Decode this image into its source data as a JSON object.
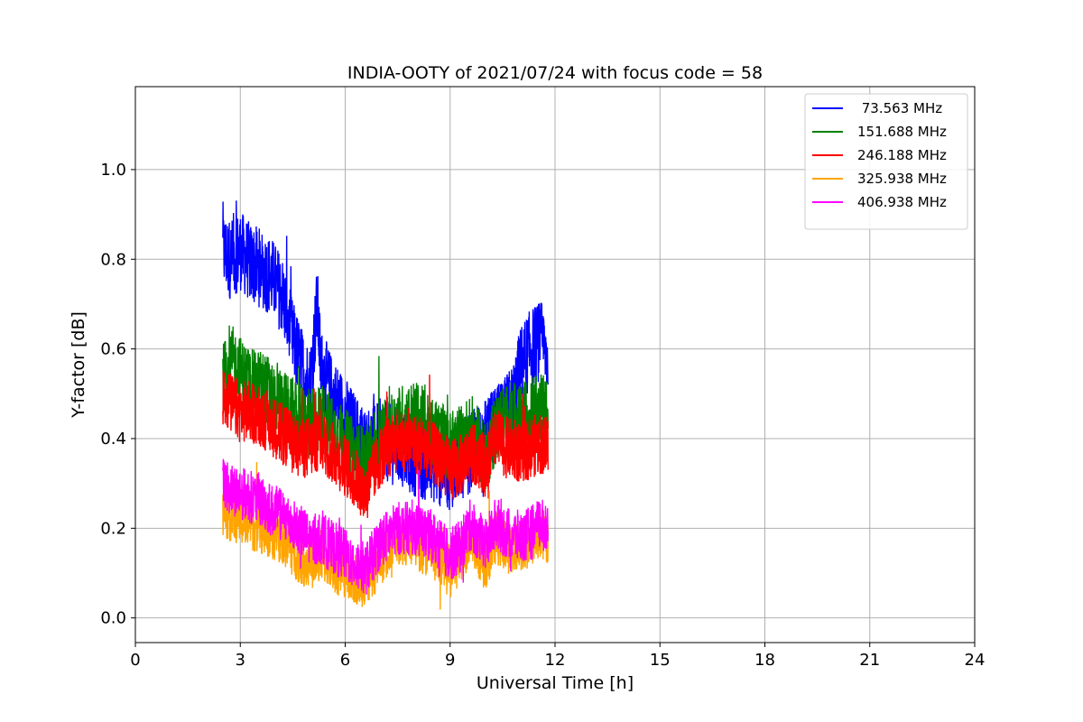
{
  "chart_data": {
    "type": "line",
    "title": "INDIA-OOTY of 2021/07/24 with focus code = 58",
    "xlabel": "Universal Time [h]",
    "ylabel": "Y-factor [dB]",
    "xlim": [
      0,
      24
    ],
    "ylim": [
      -0.055,
      1.185
    ],
    "xticks": [
      0,
      3,
      6,
      9,
      12,
      15,
      18,
      21,
      24
    ],
    "yticks": [
      0.0,
      0.2,
      0.4,
      0.6,
      0.8,
      1.0
    ],
    "xtick_labels": [
      "0",
      "3",
      "6",
      "9",
      "12",
      "15",
      "18",
      "21",
      "24"
    ],
    "ytick_labels": [
      "0.0",
      "0.2",
      "0.4",
      "0.6",
      "0.8",
      "1.0"
    ],
    "grid": true,
    "legend_position": "top-right",
    "series": [
      {
        "name": " 73.563 MHz",
        "color": "#0000ff",
        "x": [
          2.5,
          2.7,
          3.0,
          3.3,
          3.6,
          3.9,
          4.2,
          4.5,
          4.8,
          5.0,
          5.2,
          5.3,
          5.6,
          6.0,
          6.3,
          6.6,
          7.0,
          7.5,
          8.0,
          8.5,
          9.0,
          9.3,
          9.6,
          10.0,
          10.2,
          10.5,
          10.8,
          11.0,
          11.3,
          11.6,
          11.8
        ],
        "y": [
          0.82,
          0.8,
          0.82,
          0.79,
          0.78,
          0.76,
          0.72,
          0.62,
          0.55,
          0.52,
          0.7,
          0.56,
          0.5,
          0.45,
          0.41,
          0.38,
          0.4,
          0.38,
          0.36,
          0.34,
          0.33,
          0.35,
          0.37,
          0.4,
          0.42,
          0.44,
          0.48,
          0.56,
          0.6,
          0.62,
          0.58
        ]
      },
      {
        "name": "151.688 MHz",
        "color": "#008000",
        "x": [
          2.5,
          2.7,
          3.0,
          3.3,
          3.6,
          3.9,
          4.2,
          4.5,
          4.8,
          5.0,
          5.3,
          5.6,
          6.0,
          6.3,
          6.6,
          7.0,
          7.5,
          8.0,
          8.5,
          9.0,
          9.3,
          9.6,
          10.0,
          10.3,
          10.6,
          11.0,
          11.3,
          11.6,
          11.8
        ],
        "y": [
          0.53,
          0.58,
          0.55,
          0.52,
          0.52,
          0.5,
          0.48,
          0.45,
          0.44,
          0.43,
          0.45,
          0.42,
          0.39,
          0.36,
          0.35,
          0.4,
          0.44,
          0.45,
          0.42,
          0.38,
          0.4,
          0.42,
          0.36,
          0.42,
          0.45,
          0.44,
          0.46,
          0.47,
          0.45
        ]
      },
      {
        "name": "246.188 MHz",
        "color": "#ff0000",
        "x": [
          2.5,
          2.7,
          3.0,
          3.3,
          3.6,
          3.9,
          4.2,
          4.5,
          4.8,
          5.0,
          5.3,
          5.6,
          6.0,
          6.3,
          6.6,
          7.0,
          7.5,
          8.0,
          8.5,
          9.0,
          9.3,
          9.6,
          10.0,
          10.3,
          10.6,
          11.0,
          11.3,
          11.6,
          11.8
        ],
        "y": [
          0.5,
          0.48,
          0.46,
          0.46,
          0.45,
          0.43,
          0.41,
          0.39,
          0.38,
          0.38,
          0.4,
          0.37,
          0.34,
          0.31,
          0.28,
          0.36,
          0.4,
          0.39,
          0.37,
          0.33,
          0.34,
          0.37,
          0.34,
          0.4,
          0.38,
          0.37,
          0.38,
          0.39,
          0.38
        ]
      },
      {
        "name": "325.938 MHz",
        "color": "#ffa500",
        "x": [
          2.5,
          2.7,
          3.0,
          3.3,
          3.6,
          3.9,
          4.2,
          4.5,
          4.8,
          5.0,
          5.3,
          5.6,
          6.0,
          6.3,
          6.6,
          7.0,
          7.5,
          8.0,
          8.5,
          9.0,
          9.3,
          9.6,
          10.0,
          10.3,
          10.6,
          11.0,
          11.3,
          11.6,
          11.8
        ],
        "y": [
          0.24,
          0.23,
          0.22,
          0.21,
          0.2,
          0.19,
          0.18,
          0.15,
          0.13,
          0.12,
          0.14,
          0.12,
          0.1,
          0.09,
          0.08,
          0.13,
          0.18,
          0.17,
          0.14,
          0.1,
          0.13,
          0.18,
          0.12,
          0.18,
          0.16,
          0.15,
          0.17,
          0.19,
          0.18
        ]
      },
      {
        "name": "406.938 MHz",
        "color": "#ff00ff",
        "x": [
          2.5,
          2.7,
          3.0,
          3.3,
          3.6,
          3.9,
          4.2,
          4.5,
          4.8,
          5.0,
          5.3,
          5.6,
          6.0,
          6.3,
          6.6,
          7.0,
          7.5,
          8.0,
          8.5,
          9.0,
          9.3,
          9.6,
          10.0,
          10.3,
          10.6,
          11.0,
          11.3,
          11.6,
          11.8
        ],
        "y": [
          0.3,
          0.29,
          0.28,
          0.27,
          0.26,
          0.24,
          0.23,
          0.21,
          0.19,
          0.17,
          0.18,
          0.16,
          0.14,
          0.12,
          0.11,
          0.17,
          0.2,
          0.2,
          0.18,
          0.14,
          0.16,
          0.21,
          0.16,
          0.21,
          0.19,
          0.18,
          0.19,
          0.21,
          0.2
        ]
      }
    ]
  }
}
